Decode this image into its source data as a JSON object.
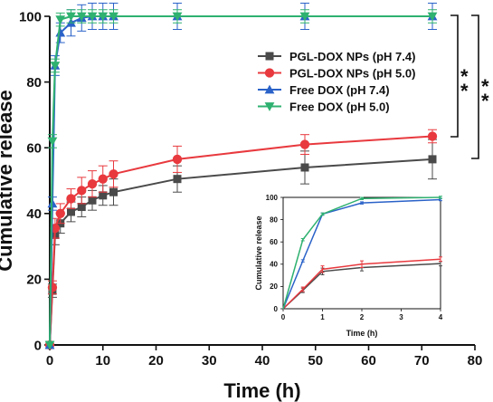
{
  "chart_data": [
    {
      "type": "line",
      "xlabel": "Time (h)",
      "ylabel": "Cumulative release",
      "xlim": [
        0,
        80
      ],
      "ylim": [
        0,
        100
      ],
      "xticks": [
        0,
        10,
        20,
        30,
        40,
        50,
        60,
        70,
        80
      ],
      "yticks": [
        0,
        20,
        40,
        60,
        80,
        100
      ],
      "grid": false,
      "legend_position": "top-right",
      "x": [
        0,
        0.5,
        1,
        2,
        4,
        6,
        8,
        10,
        12,
        24,
        48,
        72
      ],
      "series": [
        {
          "name": "PGL-DOX NPs (pH 7.4)",
          "color": "#4a4a4a",
          "marker": "square",
          "values": [
            0,
            16.5,
            33.5,
            37,
            40.5,
            42,
            44,
            45.5,
            46.5,
            50.5,
            54,
            56.5
          ],
          "errors": [
            0,
            2,
            3,
            3,
            3,
            3,
            3,
            3,
            4,
            4,
            5,
            6
          ]
        },
        {
          "name": "PGL-DOX NPs (pH 5.0)",
          "color": "#e8393e",
          "marker": "circle",
          "values": [
            0,
            17.5,
            35.5,
            40,
            44.5,
            47,
            49,
            50.5,
            52,
            56.5,
            61,
            63.5
          ],
          "errors": [
            0,
            2,
            3,
            3,
            3,
            4,
            4,
            4,
            4,
            4,
            3,
            2
          ]
        },
        {
          "name": "Free DOX (pH 7.4)",
          "color": "#2a62c8",
          "marker": "triangle-up",
          "values": [
            0,
            43,
            85,
            95,
            98,
            99.5,
            100,
            100,
            100,
            100,
            100,
            100
          ],
          "errors": [
            0,
            2,
            3,
            3,
            4,
            4,
            4,
            4,
            4,
            4,
            4,
            4
          ]
        },
        {
          "name": "Free DOX (pH 5.0)",
          "color": "#2fb170",
          "marker": "triangle-down",
          "values": [
            0,
            62,
            85,
            99,
            100,
            100,
            100,
            100,
            100,
            100,
            100,
            100
          ],
          "errors": [
            0,
            2,
            2,
            2,
            2,
            2,
            2,
            2,
            2,
            2,
            2,
            2
          ]
        }
      ],
      "annotations": [
        "*",
        "*",
        "*",
        "*"
      ]
    },
    {
      "type": "line",
      "xlabel": "Time (h)",
      "ylabel": "Cumulative release",
      "xlim": [
        0,
        4
      ],
      "ylim": [
        0,
        100
      ],
      "xticks": [
        0,
        1,
        2,
        3,
        4
      ],
      "yticks": [
        0,
        20,
        40,
        60,
        80,
        100
      ],
      "grid": false,
      "x": [
        0,
        0.5,
        1,
        2,
        4
      ],
      "series": [
        {
          "color": "#4a4a4a",
          "values": [
            0,
            16.5,
            33.5,
            37,
            40.5
          ],
          "errors": [
            0,
            2,
            3,
            3,
            2
          ]
        },
        {
          "color": "#e8393e",
          "values": [
            0,
            17.5,
            35.5,
            40,
            44.5
          ],
          "errors": [
            0,
            2,
            3,
            3,
            2
          ]
        },
        {
          "color": "#2a62c8",
          "values": [
            0,
            43,
            85,
            95,
            98
          ],
          "errors": [
            0,
            1,
            1,
            1,
            1
          ]
        },
        {
          "color": "#2fb170",
          "values": [
            0,
            62,
            85,
            99,
            100
          ],
          "errors": [
            0,
            1,
            1,
            1,
            1
          ]
        }
      ]
    }
  ]
}
